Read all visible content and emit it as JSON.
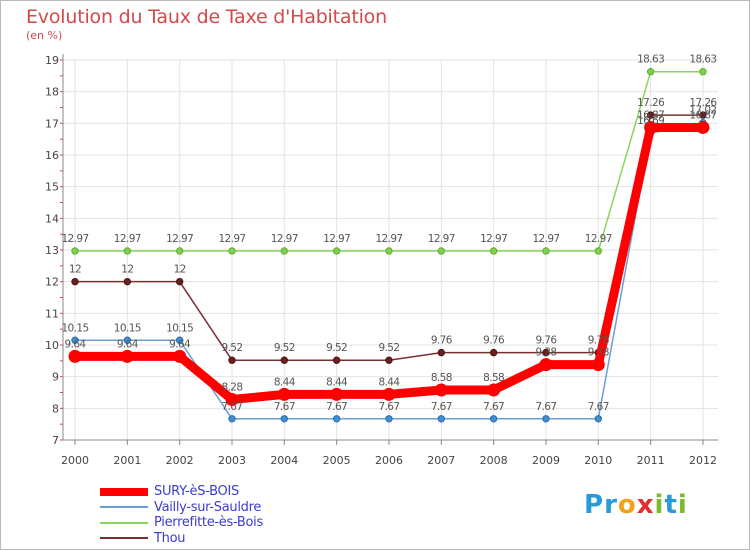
{
  "header": {
    "title": "Evolution du Taux de Taxe d'Habitation",
    "subtitle": "(en %)"
  },
  "logo": {
    "letters": [
      {
        "char": "P",
        "color": "#2a9bd6"
      },
      {
        "char": "r",
        "color": "#2a9bd6"
      },
      {
        "char": "o",
        "color": "#f4a11a"
      },
      {
        "char": "x",
        "color": "#e0312f"
      },
      {
        "char": "i",
        "color": "#7dbb2a"
      },
      {
        "char": "t",
        "color": "#2a9bd6"
      },
      {
        "char": "i",
        "color": "#7dbb2a"
      }
    ]
  },
  "chart_data": {
    "type": "line",
    "title": "Evolution du Taux de Taxe d'Habitation",
    "ylabel": "(en %)",
    "xlabel": "",
    "x": [
      "2000",
      "2001",
      "2002",
      "2003",
      "2004",
      "2005",
      "2006",
      "2007",
      "2008",
      "2009",
      "2010",
      "2011",
      "2012"
    ],
    "ylim": [
      7,
      19
    ],
    "yticks": [
      "7",
      "8",
      "9",
      "10",
      "11",
      "12",
      "13",
      "14",
      "15",
      "16",
      "17",
      "18",
      "19"
    ],
    "grid": true,
    "legend_position": "bottom-left",
    "series": [
      {
        "name": "SURY-èS-BOIS",
        "color": "#ff0000",
        "values": [
          9.64,
          9.64,
          9.64,
          8.28,
          8.44,
          8.44,
          8.44,
          8.58,
          8.58,
          9.38,
          9.38,
          16.87,
          16.87
        ],
        "labels": [
          "9.64",
          "9.64",
          "9.64",
          "8.28",
          "8.44",
          "8.44",
          "8.44",
          "8.58",
          "8.58",
          "9.38",
          "9.38",
          "16.87",
          "16.87"
        ]
      },
      {
        "name": "Vailly-sur-Sauldre",
        "color": "#6a9fd4",
        "values": [
          10.15,
          10.15,
          10.15,
          7.67,
          7.67,
          7.67,
          7.67,
          7.67,
          7.67,
          7.67,
          7.67,
          16.69,
          17.02
        ],
        "labels": [
          "10.15",
          "10.15",
          "10.15",
          "7.67",
          "7.67",
          "7.67",
          "7.67",
          "7.67",
          "7.67",
          "7.67",
          "7.67",
          "16.69",
          "17.02"
        ]
      },
      {
        "name": "Pierrefitte-ès-Bois",
        "color": "#88d65a",
        "values": [
          12.97,
          12.97,
          12.97,
          12.97,
          12.97,
          12.97,
          12.97,
          12.97,
          12.97,
          12.97,
          12.97,
          18.63,
          18.63
        ],
        "labels": [
          "12.97",
          "12.97",
          "12.97",
          "12.97",
          "12.97",
          "12.97",
          "12.97",
          "12.97",
          "12.97",
          "12.97",
          "12.97",
          "18.63",
          "18.63"
        ]
      },
      {
        "name": "Thou",
        "color": "#7a3030",
        "values": [
          12,
          12,
          12,
          9.52,
          9.52,
          9.52,
          9.52,
          9.76,
          9.76,
          9.76,
          9.76,
          17.26,
          17.26
        ],
        "labels": [
          "12",
          "12",
          "12",
          "9.52",
          "9.52",
          "9.52",
          "9.52",
          "9.76",
          "9.76",
          "9.76",
          "9.76",
          "17.26",
          "17.26"
        ]
      }
    ]
  }
}
